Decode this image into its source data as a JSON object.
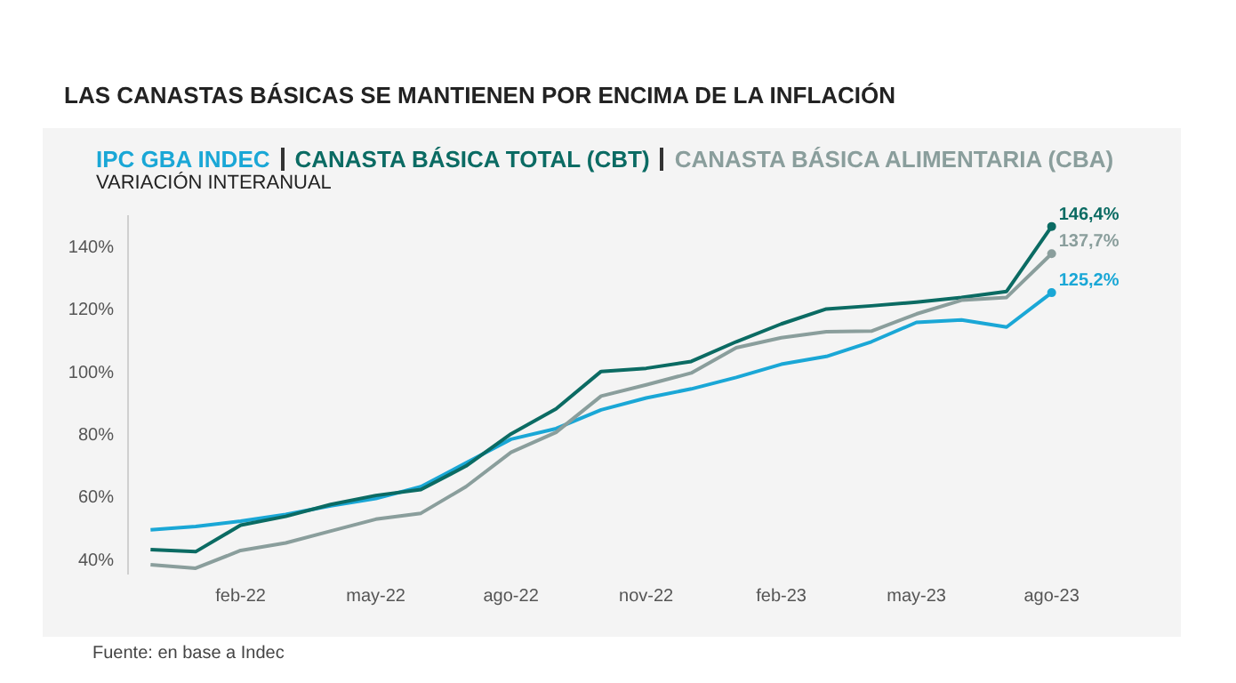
{
  "chart_data": {
    "type": "line",
    "title": "LAS CANASTAS BÁSICAS SE MANTIENEN POR ENCIMA DE LA INFLACIÓN",
    "subtitle": "VARIACIÓN INTERANUAL",
    "annotations": [
      "Fuente: en base a Indec"
    ],
    "categories": [
      null,
      null,
      "feb-22",
      null,
      null,
      "may-22",
      null,
      null,
      "ago-22",
      null,
      null,
      "nov-22",
      null,
      null,
      "feb-23",
      null,
      null,
      "may-23",
      null,
      null,
      "ago-23"
    ],
    "series": [
      {
        "name": "IPC GBA INDEC",
        "color": "#1aa7d6",
        "values": [
          49.3,
          50.4,
          52.1,
          54.2,
          57,
          59.3,
          63.1,
          70.7,
          78.3,
          81.7,
          87.7,
          91.5,
          94.4,
          98.1,
          102.3,
          104.8,
          109.5,
          115.7,
          116.5,
          114.2,
          125.2
        ],
        "value_labels": [
          null,
          null,
          null,
          null,
          null,
          null,
          null,
          null,
          null,
          null,
          null,
          null,
          null,
          null,
          null,
          null,
          null,
          null,
          null,
          null,
          "125,2%"
        ]
      },
      {
        "name": "CANASTA BÁSICA TOTAL (CBT)",
        "color": "#0b6b63",
        "values": [
          43,
          42.3,
          50.8,
          53.6,
          57.4,
          60.3,
          62.2,
          69.7,
          80,
          88,
          100,
          101,
          103.2,
          109.5,
          115.2,
          120,
          121,
          122.2,
          123.7,
          125.6,
          146.4
        ],
        "value_labels": [
          null,
          null,
          null,
          null,
          null,
          null,
          null,
          null,
          null,
          null,
          null,
          null,
          null,
          null,
          null,
          null,
          null,
          null,
          null,
          null,
          "146,4%"
        ]
      },
      {
        "name": "CANASTA BÁSICA ALIMENTARIA (CBA)",
        "color": "#8a9e9c",
        "values": [
          38.1,
          37,
          42.7,
          45.1,
          48.9,
          52.7,
          54.6,
          63.1,
          74.1,
          80.5,
          92.1,
          95.7,
          99.5,
          107.6,
          110.8,
          112.7,
          112.9,
          118.4,
          122.8,
          123.7,
          137.7
        ],
        "value_labels": [
          null,
          null,
          null,
          null,
          null,
          null,
          null,
          null,
          null,
          null,
          null,
          null,
          null,
          null,
          null,
          null,
          null,
          null,
          null,
          null,
          "137,7%"
        ]
      }
    ],
    "ylim": [
      35,
      150
    ],
    "yticks": [
      {
        "value": 40,
        "label": "40%"
      },
      {
        "value": 60,
        "label": "60%"
      },
      {
        "value": 80,
        "label": "80%"
      },
      {
        "value": 100,
        "label": "100%"
      },
      {
        "value": 120,
        "label": "120%"
      },
      {
        "value": 140,
        "label": "140%"
      }
    ],
    "grid": false,
    "legend": "top left",
    "marker": "none",
    "line_style": "solid"
  }
}
